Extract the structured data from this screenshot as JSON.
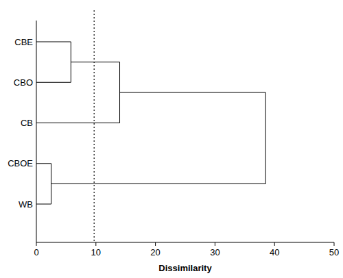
{
  "chart_data": {
    "type": "dendrogram",
    "orientation": "horizontal",
    "x_label": "Dissimilarity",
    "leaves": [
      "CBE",
      "CBO",
      "CB",
      "CBOE",
      "WB"
    ],
    "merges": [
      {
        "a": 0,
        "b": 1,
        "height": 5.8
      },
      {
        "a": 5,
        "b": 2,
        "height": 14.0
      },
      {
        "a": 3,
        "b": 4,
        "height": 2.5
      },
      {
        "a": 6,
        "b": 7,
        "height": 38.5
      }
    ],
    "threshold": 9.7,
    "xlim": [
      0,
      50
    ],
    "xticks": [
      0,
      10,
      20,
      30,
      40,
      50
    ]
  }
}
